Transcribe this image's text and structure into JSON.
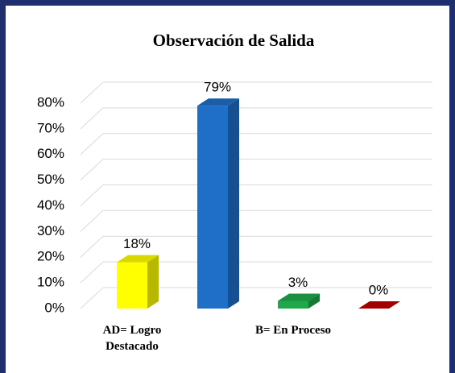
{
  "chart_data": {
    "type": "bar3d",
    "title": "Observación de Salida",
    "categories": [
      "AD= Logro Destacado",
      null,
      "B= En Proceso",
      null
    ],
    "values": [
      18,
      79,
      3,
      0
    ],
    "value_labels": [
      "18%",
      "79%",
      "3%",
      "0%"
    ],
    "colors": [
      "#ffff00",
      "#1f6fc8",
      "#1fa84a",
      "#c00000"
    ],
    "ylim": [
      0,
      80
    ],
    "yticks": [
      {
        "value": 0,
        "label": "0%"
      },
      {
        "value": 10,
        "label": "10%"
      },
      {
        "value": 20,
        "label": "20%"
      },
      {
        "value": 30,
        "label": "30%"
      },
      {
        "value": 40,
        "label": "40%"
      },
      {
        "value": 50,
        "label": "50%"
      },
      {
        "value": 60,
        "label": "60%"
      },
      {
        "value": 70,
        "label": "70%"
      },
      {
        "value": 80,
        "label": "80%"
      }
    ],
    "grid": true
  }
}
